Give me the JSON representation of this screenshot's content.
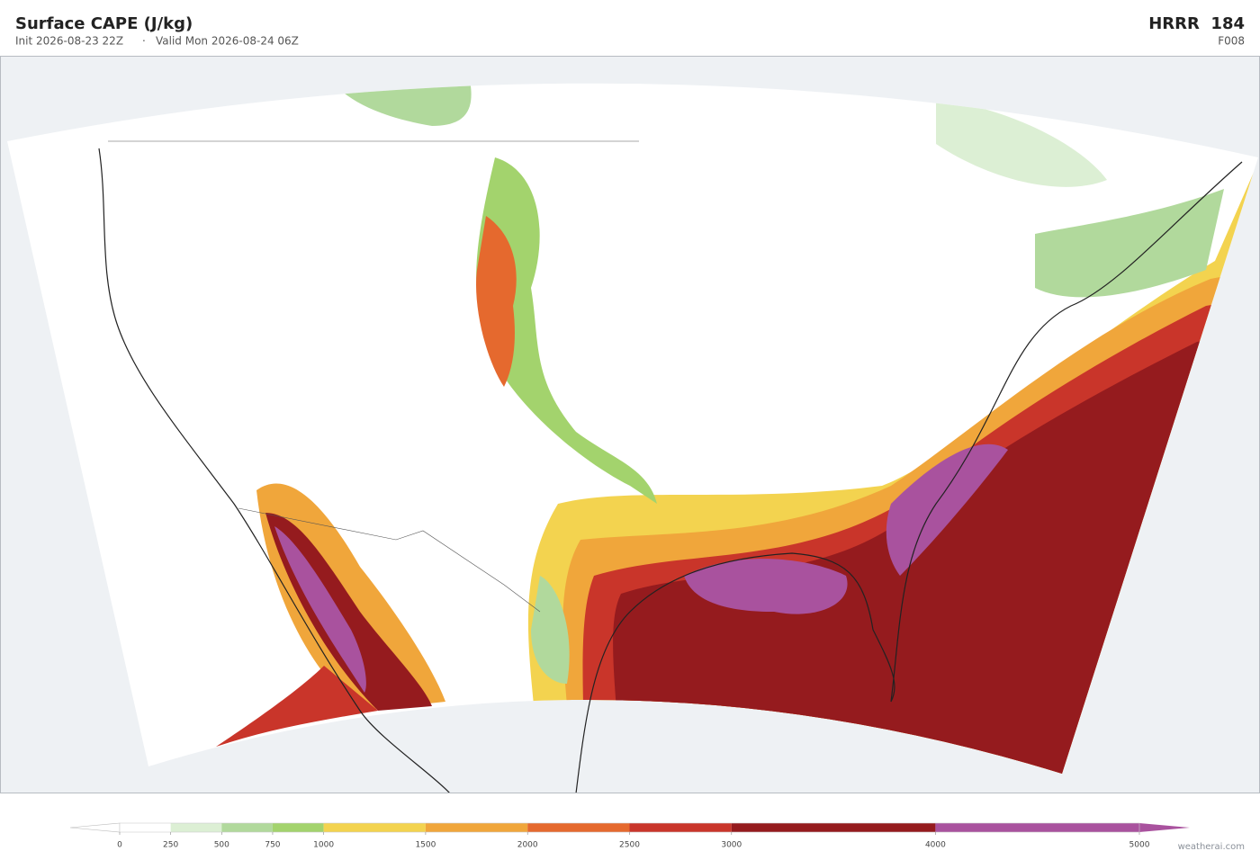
{
  "header": {
    "title": "Surface CAPE  (J/kg)",
    "init": "Init 2026-08-23 22Z",
    "separator": "·",
    "valid": "Valid Mon 2026-08-24 06Z",
    "model": "HRRR  184",
    "forecast_hour": "F008"
  },
  "colorbar": {
    "bounds": [
      0,
      250,
      500,
      750,
      1000,
      1500,
      2000,
      2500,
      3000,
      4000,
      5000
    ],
    "colors": [
      "#ffffff",
      "#dcefd4",
      "#b1d99c",
      "#a3d36d",
      "#f3d34f",
      "#f0a63b",
      "#e5692e",
      "#c9352a",
      "#951b1e",
      "#a9529e"
    ],
    "extend_min_color": "#ffffff",
    "extend_max_color": "#a9529e"
  },
  "footer": {
    "watermark": "weatherai.com"
  }
}
